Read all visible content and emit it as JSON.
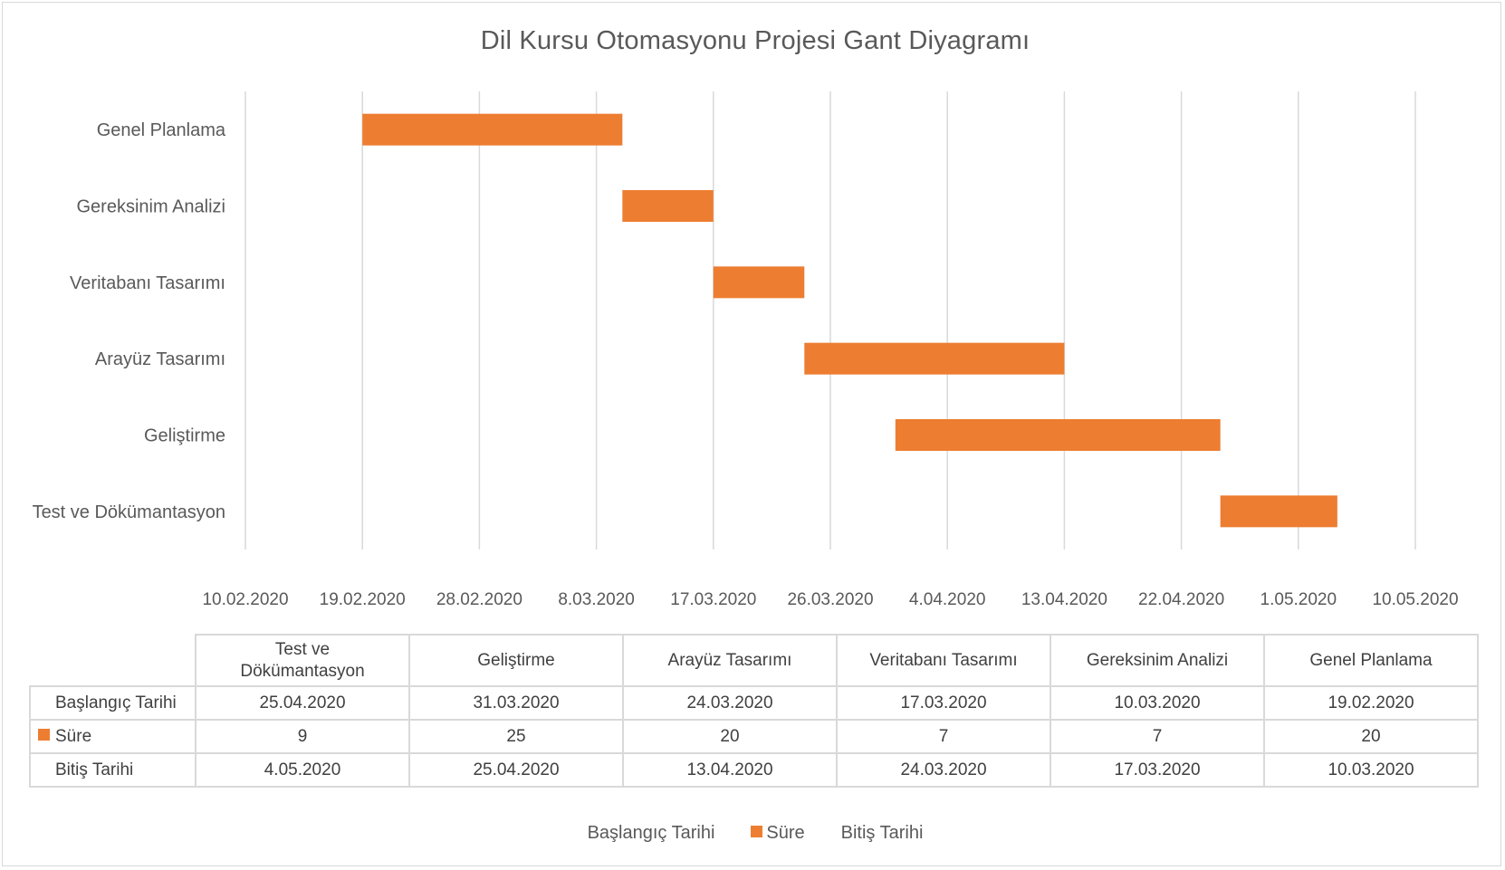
{
  "chart_data": {
    "type": "bar",
    "orientation": "horizontal-stacked",
    "title": "Dil Kursu Otomasyonu  Projesi Gant Diyagramı",
    "tasks": [
      "Genel Planlama",
      "Gereksinim Analizi",
      "Veritabanı Tasarımı",
      "Arayüz Tasarımı",
      "Geliştirme",
      "Test ve Dökümantasyon"
    ],
    "start_dates": [
      "2020-02-19",
      "2020-03-10",
      "2020-03-17",
      "2020-03-24",
      "2020-03-31",
      "2020-04-25"
    ],
    "durations": [
      20,
      7,
      7,
      20,
      25,
      9
    ],
    "x_ticks": [
      "10.02.2020",
      "19.02.2020",
      "28.02.2020",
      "8.03.2020",
      "17.03.2020",
      "26.03.2020",
      "4.04.2020",
      "13.04.2020",
      "22.04.2020",
      "1.05.2020",
      "10.05.2020"
    ],
    "xlim": [
      "2020-02-10",
      "2020-05-10"
    ],
    "grid": "vertical",
    "series": [
      {
        "name": "Başlangıç Tarihi",
        "color": "none",
        "visible": false
      },
      {
        "name": "Süre",
        "color": "#ED7D31",
        "visible": true
      },
      {
        "name": "Bitiş Tarihi",
        "color": "none",
        "visible": false
      }
    ],
    "legend_position": "bottom"
  },
  "data_table": {
    "columns": [
      [
        "Test ve",
        "Dökümantasyon"
      ],
      [
        "Geliştirme"
      ],
      [
        "Arayüz Tasarımı"
      ],
      [
        "Veritabanı Tasarımı"
      ],
      [
        "Gereksinim Analizi"
      ],
      [
        "Genel Planlama"
      ]
    ],
    "rows": [
      {
        "label": "Başlangıç Tarihi",
        "swatch": false,
        "values": [
          "25.04.2020",
          "31.03.2020",
          "24.03.2020",
          "17.03.2020",
          "10.03.2020",
          "19.02.2020"
        ]
      },
      {
        "label": "Süre",
        "swatch": true,
        "values": [
          "9",
          "25",
          "20",
          "7",
          "7",
          "20"
        ]
      },
      {
        "label": "Bitiş Tarihi",
        "swatch": false,
        "values": [
          "4.05.2020",
          "25.04.2020",
          "13.04.2020",
          "24.03.2020",
          "17.03.2020",
          "10.03.2020"
        ]
      }
    ]
  },
  "colors": {
    "bar": "#ED7D31",
    "grid": "#D9D9D9",
    "text": "#595959"
  }
}
